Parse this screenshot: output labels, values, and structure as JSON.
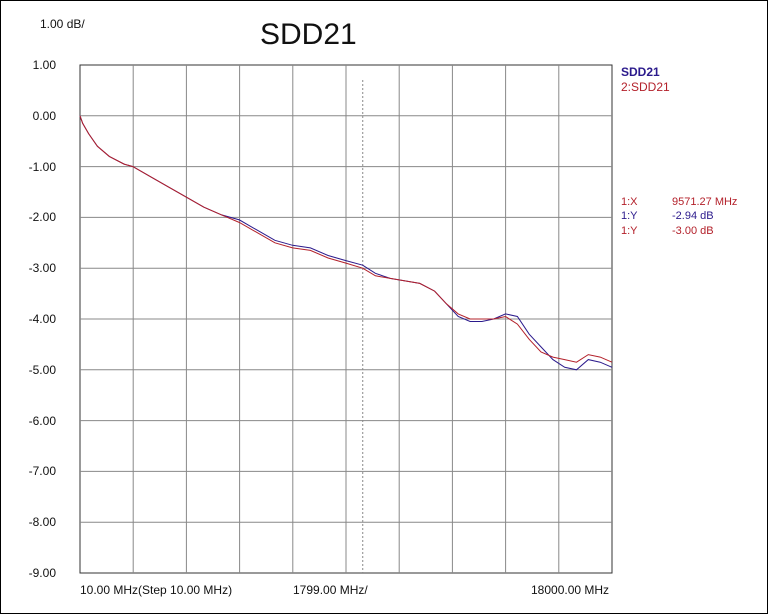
{
  "title": "SDD21",
  "scale_label": "1.00 dB/",
  "x_labels": {
    "left": "10.00 MHz(Step 10.00 MHz)",
    "mid": "1799.00 MHz/",
    "right": "18000.00 MHz"
  },
  "legend": [
    "SDD21",
    "2:SDD21"
  ],
  "markers": [
    {
      "label": "1:X",
      "value": "9571.27 MHz",
      "color": "#b3202a"
    },
    {
      "label": "1:Y",
      "value": "-2.94 dB",
      "color": "#2b1a8c"
    },
    {
      "label": "1:Y",
      "value": "-3.00 dB",
      "color": "#b3202a"
    }
  ],
  "chart_data": {
    "type": "line",
    "title": "SDD21",
    "xlabel": "",
    "ylabel": "",
    "x_unit": "MHz",
    "xlim": [
      10,
      18000
    ],
    "ylim": [
      -9,
      1
    ],
    "y_ticks": [
      "1.00",
      "0.00",
      "-1.00",
      "-2.00",
      "-3.00",
      "-4.00",
      "-5.00",
      "-6.00",
      "-7.00",
      "-8.00",
      "-9.00"
    ],
    "y_tick_values": [
      1,
      0,
      -1,
      -2,
      -3,
      -4,
      -5,
      -6,
      -7,
      -8,
      -9
    ],
    "x_tick_values": [
      10,
      1809,
      3608,
      5407,
      7206,
      9005,
      10804,
      12603,
      14402,
      16201,
      18000
    ],
    "grid": true,
    "marker_x": 9571.27,
    "colors": {
      "series1": "#2b1a8c",
      "series2": "#b3202a",
      "grid": "#888888",
      "marker": "#888888"
    },
    "series": [
      {
        "name": "SDD21",
        "x": [
          10,
          100,
          300,
          600,
          1000,
          1500,
          1800,
          2400,
          3000,
          3600,
          4200,
          4800,
          5400,
          6000,
          6600,
          7200,
          7800,
          8400,
          9000,
          9571,
          10000,
          10500,
          11000,
          11500,
          12000,
          12400,
          12800,
          13200,
          13600,
          14000,
          14400,
          14800,
          15200,
          15600,
          16000,
          16400,
          16800,
          17200,
          17600,
          18000
        ],
        "y": [
          0.0,
          -0.15,
          -0.35,
          -0.6,
          -0.8,
          -0.95,
          -1.0,
          -1.2,
          -1.4,
          -1.6,
          -1.8,
          -1.95,
          -2.05,
          -2.25,
          -2.45,
          -2.55,
          -2.6,
          -2.75,
          -2.85,
          -2.94,
          -3.1,
          -3.2,
          -3.25,
          -3.3,
          -3.45,
          -3.7,
          -3.95,
          -4.05,
          -4.05,
          -4.0,
          -3.9,
          -3.95,
          -4.3,
          -4.55,
          -4.8,
          -4.95,
          -5.0,
          -4.8,
          -4.85,
          -4.95
        ]
      },
      {
        "name": "2:SDD21",
        "x": [
          10,
          100,
          300,
          600,
          1000,
          1500,
          1800,
          2400,
          3000,
          3600,
          4200,
          4800,
          5400,
          6000,
          6600,
          7200,
          7800,
          8400,
          9000,
          9571,
          10000,
          10500,
          11000,
          11500,
          12000,
          12400,
          12800,
          13200,
          13600,
          14000,
          14400,
          14800,
          15200,
          15600,
          16000,
          16400,
          16800,
          17200,
          17600,
          18000
        ],
        "y": [
          0.0,
          -0.15,
          -0.35,
          -0.6,
          -0.8,
          -0.95,
          -1.0,
          -1.2,
          -1.4,
          -1.6,
          -1.8,
          -1.95,
          -2.1,
          -2.3,
          -2.5,
          -2.6,
          -2.65,
          -2.8,
          -2.9,
          -3.0,
          -3.15,
          -3.2,
          -3.25,
          -3.3,
          -3.45,
          -3.7,
          -3.9,
          -4.0,
          -4.0,
          -4.0,
          -3.95,
          -4.1,
          -4.4,
          -4.65,
          -4.75,
          -4.8,
          -4.85,
          -4.7,
          -4.75,
          -4.85
        ]
      }
    ]
  }
}
